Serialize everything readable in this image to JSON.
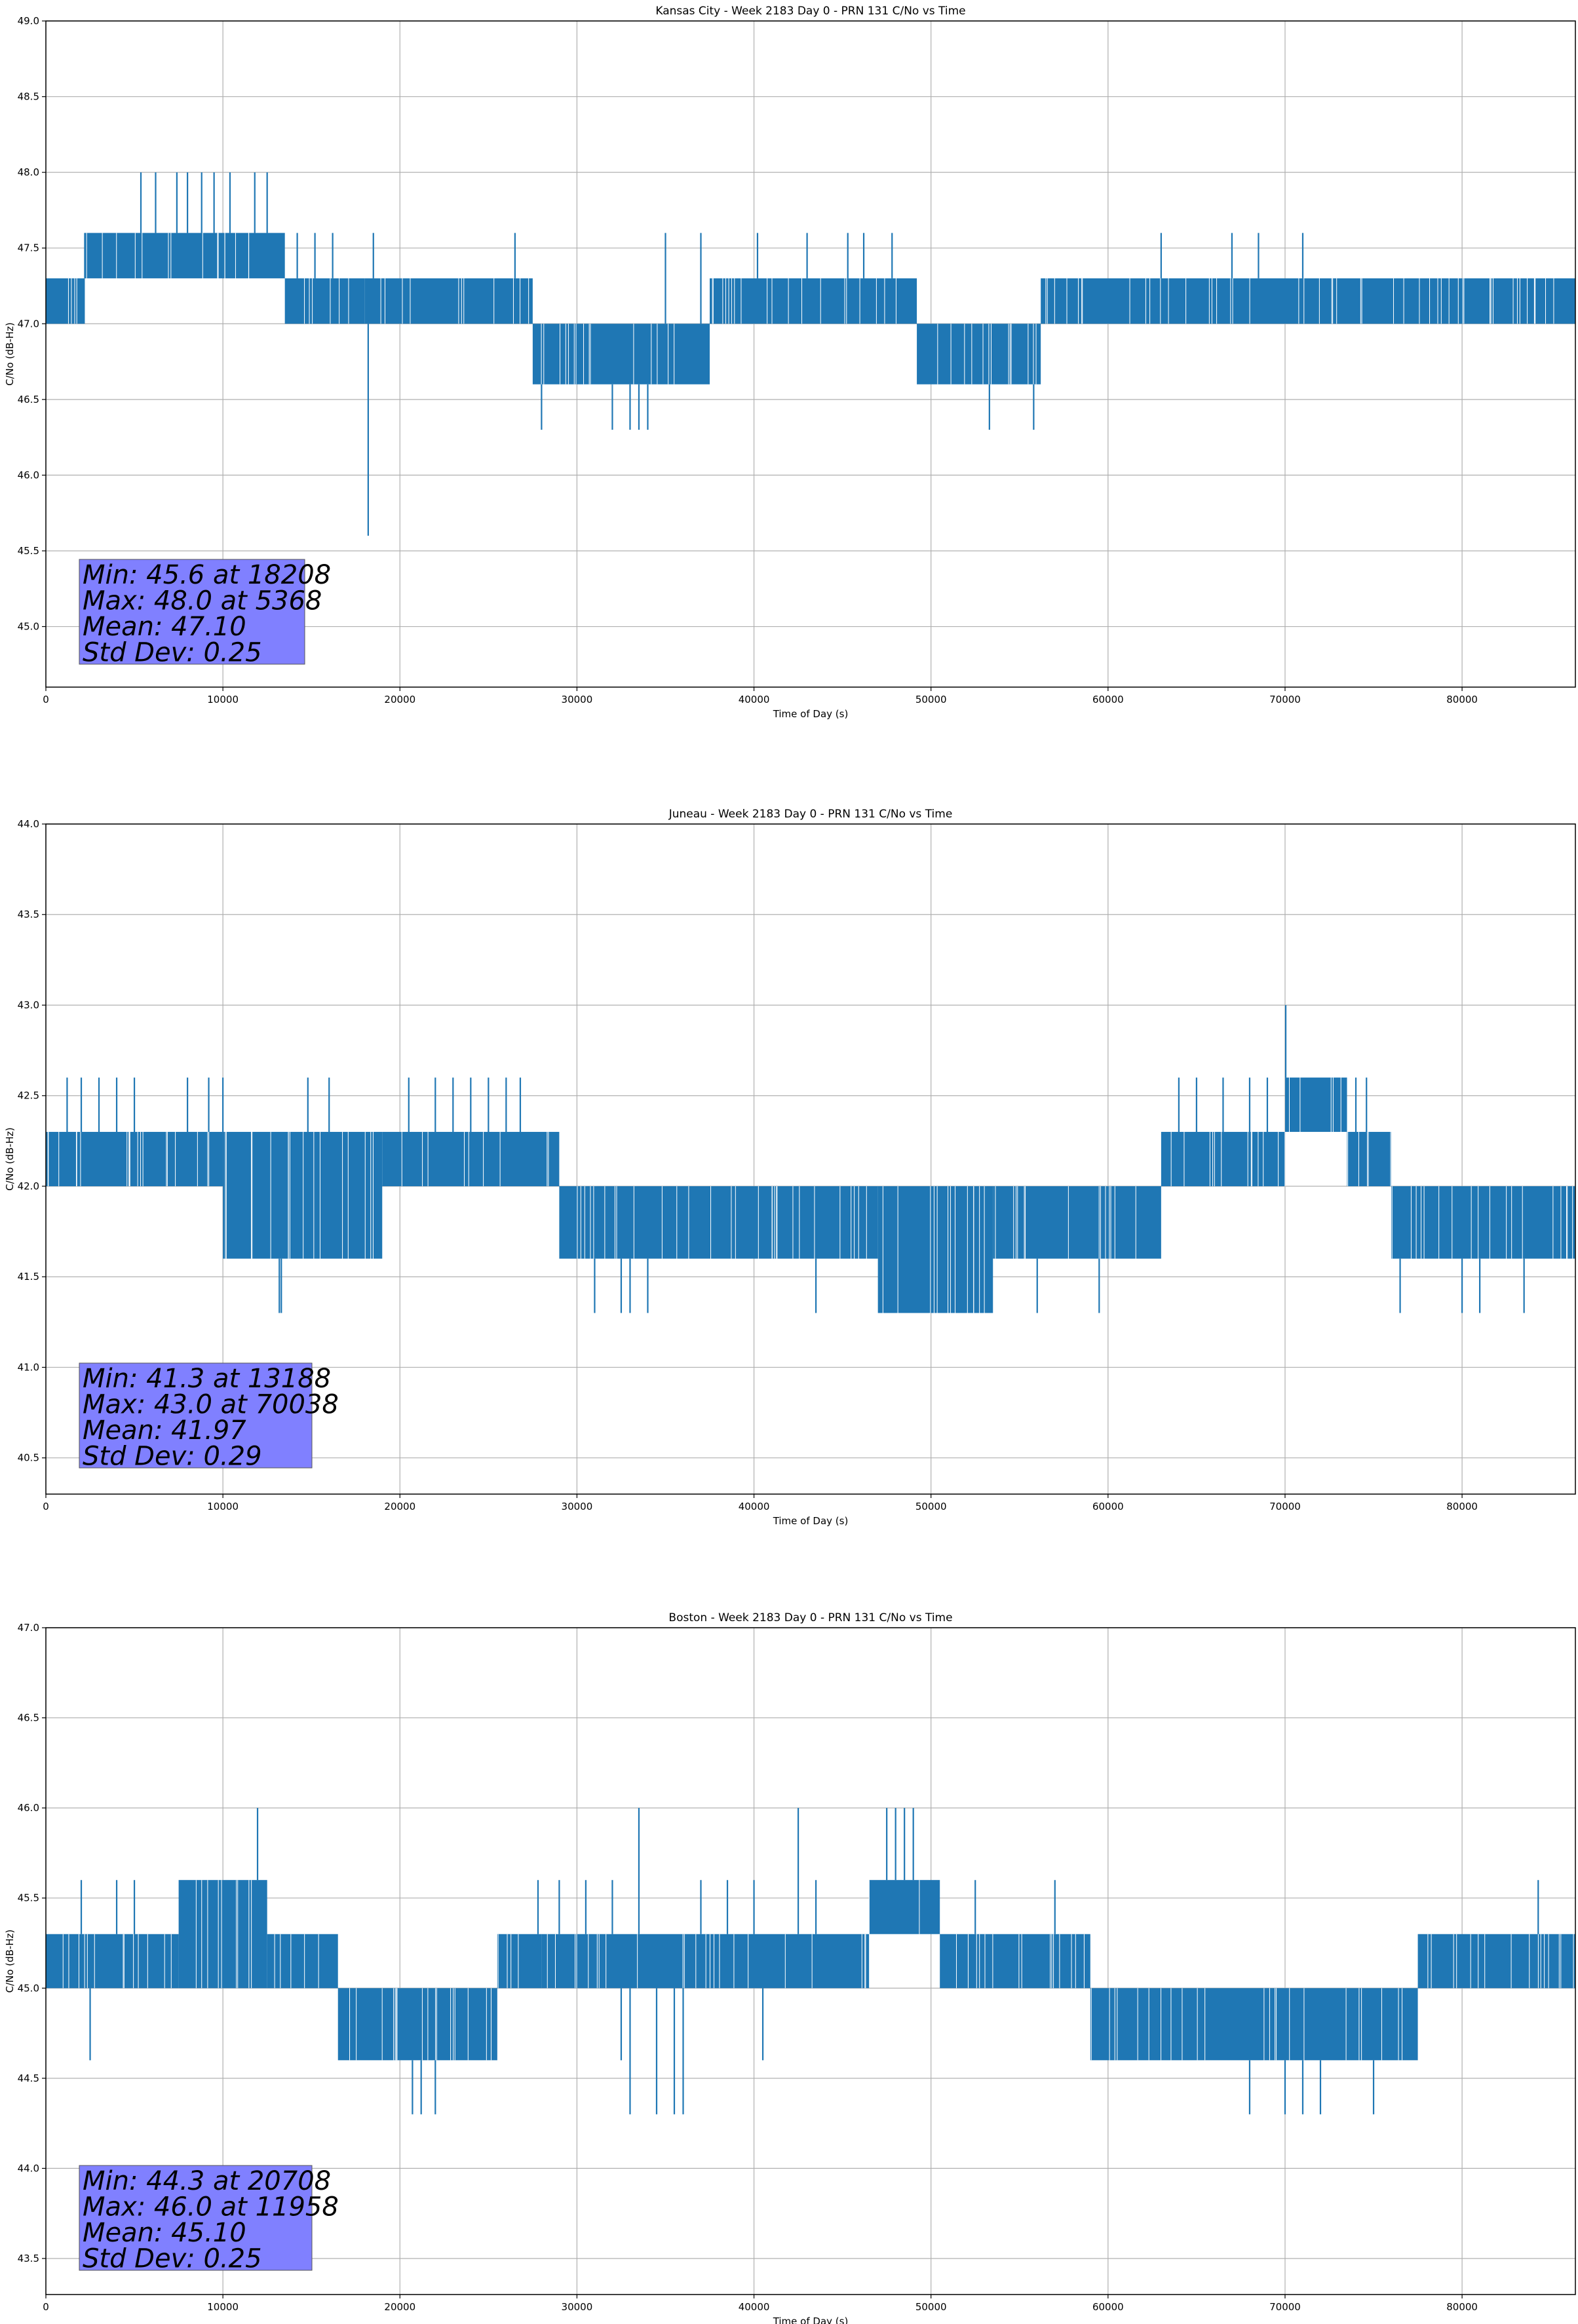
{
  "colors": {
    "series": "#1f77b4",
    "grid": "#b0b0b0",
    "stats_box": "#8080ff"
  },
  "chart_data": [
    {
      "type": "line",
      "title": "Kansas City - Week 2183 Day 0 - PRN 131 C/No vs Time",
      "xlabel": "Time of Day (s)",
      "ylabel": "C/No (dB-Hz)",
      "xlim": [
        0,
        86400
      ],
      "ylim": [
        44.6,
        49.0
      ],
      "xticks": [
        "0",
        "10000",
        "20000",
        "30000",
        "40000",
        "50000",
        "60000",
        "70000",
        "80000"
      ],
      "yticks": [
        "45.0",
        "45.5",
        "46.0",
        "46.5",
        "47.0",
        "47.5",
        "48.0",
        "48.5",
        "49.0"
      ],
      "grid": true,
      "stats": [
        "Min: 45.6 at 18208",
        "Max: 48.0 at 5368",
        "Mean: 47.10",
        "Std Dev: 0.25"
      ],
      "band_segments": [
        {
          "x": [
            0,
            2200
          ],
          "base": [
            47.0,
            47.3
          ]
        },
        {
          "x": [
            2200,
            13500
          ],
          "base": [
            47.3,
            47.6
          ]
        },
        {
          "x": [
            13500,
            18000
          ],
          "base": [
            47.0,
            47.3
          ]
        },
        {
          "x": [
            18000,
            27500
          ],
          "base": [
            47.0,
            47.3
          ]
        },
        {
          "x": [
            27500,
            37500
          ],
          "base": [
            46.6,
            47.0
          ]
        },
        {
          "x": [
            37500,
            49200
          ],
          "base": [
            47.0,
            47.3
          ]
        },
        {
          "x": [
            49200,
            56200
          ],
          "base": [
            46.6,
            47.0
          ]
        },
        {
          "x": [
            56200,
            86400
          ],
          "base": [
            47.0,
            47.3
          ]
        }
      ],
      "spikes": [
        [
          18208,
          45.6
        ],
        [
          28000,
          46.3
        ],
        [
          32000,
          46.3
        ],
        [
          33000,
          46.3
        ],
        [
          33500,
          46.3
        ],
        [
          34000,
          46.3
        ],
        [
          53300,
          46.3
        ],
        [
          55800,
          46.3
        ],
        [
          5368,
          48.0
        ],
        [
          6200,
          48.0
        ],
        [
          7400,
          48.0
        ],
        [
          8000,
          48.0
        ],
        [
          8800,
          48.0
        ],
        [
          9500,
          48.0
        ],
        [
          10400,
          48.0
        ],
        [
          11800,
          48.0
        ],
        [
          12500,
          48.0
        ],
        [
          2200,
          47.6
        ],
        [
          14200,
          47.6
        ],
        [
          15200,
          47.6
        ],
        [
          16200,
          47.6
        ],
        [
          18500,
          47.6
        ],
        [
          26500,
          47.6
        ],
        [
          35000,
          47.6
        ],
        [
          37000,
          47.6
        ],
        [
          40200,
          47.6
        ],
        [
          43000,
          47.6
        ],
        [
          45300,
          47.6
        ],
        [
          46200,
          47.6
        ],
        [
          47800,
          47.6
        ],
        [
          63000,
          47.6
        ],
        [
          67000,
          47.6
        ],
        [
          68500,
          47.6
        ],
        [
          71000,
          47.6
        ]
      ]
    },
    {
      "type": "line",
      "title": "Juneau - Week 2183 Day 0 - PRN 131 C/No vs Time",
      "xlabel": "Time of Day (s)",
      "ylabel": "C/No (dB-Hz)",
      "xlim": [
        0,
        86400
      ],
      "ylim": [
        40.3,
        44.0
      ],
      "xticks": [
        "0",
        "10000",
        "20000",
        "30000",
        "40000",
        "50000",
        "60000",
        "70000",
        "80000"
      ],
      "yticks": [
        "40.5",
        "41.0",
        "41.5",
        "42.0",
        "42.5",
        "43.0",
        "43.5",
        "44.0"
      ],
      "grid": true,
      "stats": [
        "Min: 41.3 at 13188",
        "Max: 43.0 at 70038",
        "Mean: 41.97",
        "Std Dev: 0.29"
      ],
      "band_segments": [
        {
          "x": [
            0,
            10000
          ],
          "base": [
            42.0,
            42.3
          ]
        },
        {
          "x": [
            10000,
            19000
          ],
          "base": [
            41.6,
            42.3
          ]
        },
        {
          "x": [
            19000,
            29000
          ],
          "base": [
            42.0,
            42.3
          ]
        },
        {
          "x": [
            29000,
            47000
          ],
          "base": [
            41.6,
            42.0
          ]
        },
        {
          "x": [
            47000,
            53500
          ],
          "base": [
            41.3,
            42.0
          ]
        },
        {
          "x": [
            53500,
            63000
          ],
          "base": [
            41.6,
            42.0
          ]
        },
        {
          "x": [
            63000,
            70000
          ],
          "base": [
            42.0,
            42.3
          ]
        },
        {
          "x": [
            70000,
            73500
          ],
          "base": [
            42.3,
            42.6
          ]
        },
        {
          "x": [
            73500,
            76000
          ],
          "base": [
            42.0,
            42.3
          ]
        },
        {
          "x": [
            76000,
            86400
          ],
          "base": [
            41.6,
            42.0
          ]
        }
      ],
      "spikes": [
        [
          13188,
          41.3
        ],
        [
          13300,
          41.3
        ],
        [
          31000,
          41.3
        ],
        [
          32500,
          41.3
        ],
        [
          33000,
          41.3
        ],
        [
          34000,
          41.3
        ],
        [
          43500,
          41.3
        ],
        [
          48000,
          41.3
        ],
        [
          52000,
          41.3
        ],
        [
          56000,
          41.3
        ],
        [
          59500,
          41.3
        ],
        [
          76500,
          41.3
        ],
        [
          80000,
          41.3
        ],
        [
          81000,
          41.3
        ],
        [
          83500,
          41.3
        ],
        [
          70038,
          43.0
        ],
        [
          1200,
          42.6
        ],
        [
          2000,
          42.6
        ],
        [
          3000,
          42.6
        ],
        [
          4000,
          42.6
        ],
        [
          5000,
          42.6
        ],
        [
          8000,
          42.6
        ],
        [
          9200,
          42.6
        ],
        [
          10000,
          42.6
        ],
        [
          14800,
          42.6
        ],
        [
          16000,
          42.6
        ],
        [
          20500,
          42.6
        ],
        [
          22000,
          42.6
        ],
        [
          23000,
          42.6
        ],
        [
          24000,
          42.6
        ],
        [
          25000,
          42.6
        ],
        [
          26000,
          42.6
        ],
        [
          26800,
          42.6
        ],
        [
          64000,
          42.6
        ],
        [
          65000,
          42.6
        ],
        [
          66500,
          42.6
        ],
        [
          68000,
          42.6
        ],
        [
          69000,
          42.6
        ],
        [
          74000,
          42.6
        ],
        [
          74600,
          42.6
        ]
      ]
    },
    {
      "type": "line",
      "title": "Boston - Week 2183 Day 0 - PRN 131 C/No vs Time",
      "xlabel": "Time of Day (s)",
      "ylabel": "C/No (dB-Hz)",
      "xlim": [
        0,
        86400
      ],
      "ylim": [
        43.3,
        47.0
      ],
      "xticks": [
        "0",
        "10000",
        "20000",
        "30000",
        "40000",
        "50000",
        "60000",
        "70000",
        "80000"
      ],
      "yticks": [
        "43.5",
        "44.0",
        "44.5",
        "45.0",
        "45.5",
        "46.0",
        "46.5",
        "47.0"
      ],
      "grid": true,
      "stats": [
        "Min: 44.3 at 20708",
        "Max: 46.0 at 11958",
        "Mean: 45.10",
        "Std Dev: 0.25"
      ],
      "band_segments": [
        {
          "x": [
            0,
            7500
          ],
          "base": [
            45.0,
            45.3
          ]
        },
        {
          "x": [
            7500,
            12500
          ],
          "base": [
            45.0,
            45.6
          ]
        },
        {
          "x": [
            12500,
            16500
          ],
          "base": [
            45.0,
            45.3
          ]
        },
        {
          "x": [
            16500,
            25500
          ],
          "base": [
            44.6,
            45.0
          ]
        },
        {
          "x": [
            25500,
            28000
          ],
          "base": [
            45.0,
            45.3
          ]
        },
        {
          "x": [
            28000,
            46500
          ],
          "base": [
            45.0,
            45.3
          ]
        },
        {
          "x": [
            46500,
            50500
          ],
          "base": [
            45.3,
            45.6
          ]
        },
        {
          "x": [
            50500,
            59000
          ],
          "base": [
            45.0,
            45.3
          ]
        },
        {
          "x": [
            59000,
            77500
          ],
          "base": [
            44.6,
            45.0
          ]
        },
        {
          "x": [
            77500,
            86400
          ],
          "base": [
            45.0,
            45.3
          ]
        }
      ],
      "spikes": [
        [
          2500,
          44.6
        ],
        [
          20708,
          44.3
        ],
        [
          21200,
          44.3
        ],
        [
          22000,
          44.3
        ],
        [
          32500,
          44.6
        ],
        [
          33000,
          44.3
        ],
        [
          34500,
          44.3
        ],
        [
          35500,
          44.3
        ],
        [
          36000,
          44.3
        ],
        [
          40500,
          44.6
        ],
        [
          68000,
          44.3
        ],
        [
          70000,
          44.3
        ],
        [
          71000,
          44.3
        ],
        [
          72000,
          44.3
        ],
        [
          75000,
          44.3
        ],
        [
          11958,
          46.0
        ],
        [
          33500,
          46.0
        ],
        [
          42500,
          46.0
        ],
        [
          47500,
          46.0
        ],
        [
          48000,
          46.0
        ],
        [
          48500,
          46.0
        ],
        [
          49000,
          46.0
        ],
        [
          2000,
          45.6
        ],
        [
          4000,
          45.6
        ],
        [
          5000,
          45.6
        ],
        [
          27800,
          45.6
        ],
        [
          29000,
          45.6
        ],
        [
          30500,
          45.6
        ],
        [
          32000,
          45.6
        ],
        [
          37000,
          45.6
        ],
        [
          38500,
          45.6
        ],
        [
          40000,
          45.6
        ],
        [
          43500,
          45.6
        ],
        [
          52500,
          45.6
        ],
        [
          57000,
          45.6
        ],
        [
          84300,
          45.6
        ]
      ]
    }
  ]
}
